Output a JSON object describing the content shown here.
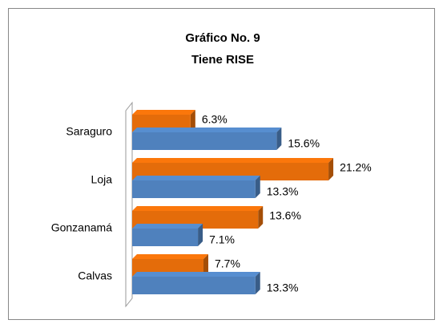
{
  "chart_data": {
    "type": "bar",
    "orientation": "horizontal",
    "title": "Gráfico No. 9",
    "subtitle": "Tiene RISE",
    "categories": [
      "Saraguro",
      "Loja",
      "Gonzanamá",
      "Calvas"
    ],
    "series": [
      {
        "color": "#e46c0a",
        "values": [
          6.3,
          21.2,
          13.6,
          7.7
        ],
        "value_labels": [
          "6.3%",
          "21.2%",
          "13.6%",
          "7.7%"
        ]
      },
      {
        "color": "#4f81bd",
        "values": [
          15.6,
          13.3,
          7.1,
          13.3
        ],
        "value_labels": [
          "15.6%",
          "13.3%",
          "7.1%",
          "13.3%"
        ]
      }
    ],
    "xlim": [
      0,
      25
    ],
    "grid": false,
    "three_d": true
  }
}
